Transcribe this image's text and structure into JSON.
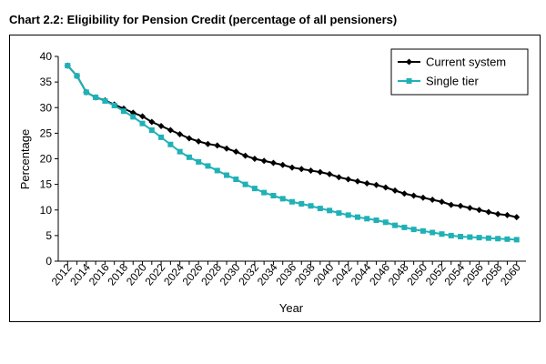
{
  "chart_title": "Chart 2.2: Eligibility for Pension Credit (percentage of all pensioners)",
  "colors": {
    "current": "#000000",
    "single": "#1fb1b6"
  },
  "chart_data": {
    "type": "line",
    "title": "Chart 2.2: Eligibility for Pension Credit (percentage of all pensioners)",
    "xlabel": "Year",
    "ylabel": "Percentage",
    "ylim": [
      0,
      40
    ],
    "yticks": [
      "0",
      "5",
      "10",
      "15",
      "20",
      "25",
      "30",
      "35",
      "40"
    ],
    "xticks": [
      "2012",
      "2014",
      "2016",
      "2018",
      "2020",
      "2022",
      "2024",
      "2026",
      "2028",
      "2030",
      "2032",
      "2034",
      "2036",
      "2038",
      "2040",
      "2042",
      "2044",
      "2046",
      "2048",
      "2050",
      "2052",
      "2054",
      "2056",
      "2058",
      "2060"
    ],
    "legend_position": "top-right",
    "grid": false,
    "x": [
      2012,
      2013,
      2014,
      2015,
      2016,
      2017,
      2018,
      2019,
      2020,
      2021,
      2022,
      2023,
      2024,
      2025,
      2026,
      2027,
      2028,
      2029,
      2030,
      2031,
      2032,
      2033,
      2034,
      2035,
      2036,
      2037,
      2038,
      2039,
      2040,
      2041,
      2042,
      2043,
      2044,
      2045,
      2046,
      2047,
      2048,
      2049,
      2050,
      2051,
      2052,
      2053,
      2054,
      2055,
      2056,
      2057,
      2058,
      2059,
      2060
    ],
    "series": [
      {
        "name": "Current system",
        "marker": "diamond",
        "values": [
          38.2,
          36.2,
          33.0,
          32.0,
          31.4,
          30.6,
          29.8,
          29.0,
          28.3,
          27.2,
          26.4,
          25.6,
          24.8,
          24.0,
          23.4,
          22.9,
          22.6,
          22.0,
          21.4,
          20.6,
          20.0,
          19.6,
          19.2,
          18.8,
          18.3,
          18.0,
          17.7,
          17.4,
          17.0,
          16.4,
          16.0,
          15.6,
          15.2,
          14.9,
          14.4,
          13.8,
          13.2,
          12.8,
          12.4,
          12.0,
          11.6,
          11.0,
          10.8,
          10.4,
          10.0,
          9.6,
          9.2,
          9.0,
          8.6
        ]
      },
      {
        "name": "Single tier",
        "marker": "square",
        "values": [
          38.2,
          36.2,
          33.0,
          32.0,
          31.3,
          30.4,
          29.3,
          28.2,
          26.9,
          25.6,
          24.2,
          22.8,
          21.4,
          20.3,
          19.4,
          18.6,
          17.7,
          16.8,
          16.0,
          15.0,
          14.2,
          13.4,
          12.8,
          12.2,
          11.6,
          11.2,
          10.8,
          10.3,
          9.9,
          9.4,
          9.0,
          8.6,
          8.3,
          8.0,
          7.6,
          7.0,
          6.6,
          6.2,
          5.9,
          5.6,
          5.3,
          5.0,
          4.8,
          4.7,
          4.6,
          4.5,
          4.4,
          4.3,
          4.2
        ]
      }
    ]
  }
}
